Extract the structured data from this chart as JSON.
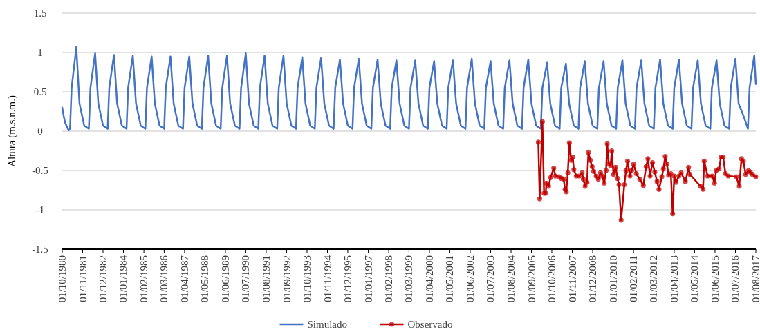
{
  "chart_data": {
    "type": "line",
    "ylabel": "Altura (m.s.n.m.)",
    "xlim": [
      "1980-10-01",
      "2017-08-01"
    ],
    "ylim": [
      -1.5,
      1.5
    ],
    "yticks": [
      -1.5,
      -1,
      -0.5,
      0,
      0.5,
      1,
      1.5
    ],
    "xticks": [
      {
        "value": "1980-10-01",
        "label": "01/10/1980"
      },
      {
        "value": "1981-11-01",
        "label": "01/11/1981"
      },
      {
        "value": "1982-12-01",
        "label": "01/12/1982"
      },
      {
        "value": "1984-01-01",
        "label": "01/01/1984"
      },
      {
        "value": "1985-02-01",
        "label": "01/02/1985"
      },
      {
        "value": "1986-03-01",
        "label": "01/03/1986"
      },
      {
        "value": "1987-04-01",
        "label": "01/04/1987"
      },
      {
        "value": "1988-05-01",
        "label": "01/05/1988"
      },
      {
        "value": "1989-06-01",
        "label": "01/06/1989"
      },
      {
        "value": "1990-07-01",
        "label": "01/07/1990"
      },
      {
        "value": "1991-08-01",
        "label": "01/08/1991"
      },
      {
        "value": "1992-09-01",
        "label": "01/09/1992"
      },
      {
        "value": "1993-10-01",
        "label": "01/10/1993"
      },
      {
        "value": "1994-11-01",
        "label": "01/11/1994"
      },
      {
        "value": "1995-12-01",
        "label": "01/12/1995"
      },
      {
        "value": "1997-01-01",
        "label": "01/01/1997"
      },
      {
        "value": "1998-02-01",
        "label": "01/02/1998"
      },
      {
        "value": "1999-03-01",
        "label": "01/03/1999"
      },
      {
        "value": "2000-04-01",
        "label": "01/04/2000"
      },
      {
        "value": "2001-05-01",
        "label": "01/05/2001"
      },
      {
        "value": "2002-06-01",
        "label": "01/06/2002"
      },
      {
        "value": "2003-07-01",
        "label": "01/07/2003"
      },
      {
        "value": "2004-08-01",
        "label": "01/08/2004"
      },
      {
        "value": "2005-09-01",
        "label": "01/09/2005"
      },
      {
        "value": "2006-10-01",
        "label": "01/10/2006"
      },
      {
        "value": "2007-11-01",
        "label": "01/11/2007"
      },
      {
        "value": "2008-12-01",
        "label": "01/12/2008"
      },
      {
        "value": "2010-01-01",
        "label": "01/01/2010"
      },
      {
        "value": "2011-02-01",
        "label": "01/02/2011"
      },
      {
        "value": "2012-03-01",
        "label": "01/03/2012"
      },
      {
        "value": "2013-04-01",
        "label": "01/04/2013"
      },
      {
        "value": "2014-05-01",
        "label": "01/05/2014"
      },
      {
        "value": "2015-06-01",
        "label": "01/06/2015"
      },
      {
        "value": "2016-07-01",
        "label": "01/07/2016"
      },
      {
        "value": "2017-08-01",
        "label": "01/08/2017"
      }
    ],
    "grid": "y",
    "legend": "bottom",
    "line_style": "solid",
    "series": [
      {
        "name": "Simulado",
        "color": "#4472c4",
        "marker": "none",
        "x": [
          "1980-10",
          "1980-11",
          "1980-12",
          "1981-02",
          "1981-03",
          "1981-04",
          "1981-07",
          "1981-09",
          "1981-12",
          "1982-03",
          "1982-04",
          "1982-07",
          "1982-09",
          "1982-12",
          "1983-03",
          "1983-04",
          "1983-07",
          "1983-09",
          "1983-12",
          "1984-03",
          "1984-04",
          "1984-07",
          "1984-09",
          "1984-12",
          "1985-03",
          "1985-04",
          "1985-07",
          "1985-09",
          "1985-12",
          "1986-03",
          "1986-04",
          "1986-07",
          "1986-09",
          "1986-12",
          "1987-03",
          "1987-04",
          "1987-07",
          "1987-09",
          "1987-12",
          "1988-03",
          "1988-04",
          "1988-07",
          "1988-09",
          "1988-12",
          "1989-03",
          "1989-04",
          "1989-07",
          "1989-09",
          "1989-12",
          "1990-03",
          "1990-04",
          "1990-07",
          "1990-09",
          "1990-12",
          "1991-03",
          "1991-04",
          "1991-07",
          "1991-09",
          "1991-12",
          "1992-03",
          "1992-04",
          "1992-07",
          "1992-09",
          "1992-12",
          "1993-03",
          "1993-04",
          "1993-07",
          "1993-09",
          "1993-12",
          "1994-03",
          "1994-04",
          "1994-07",
          "1994-09",
          "1994-12",
          "1995-03",
          "1995-04",
          "1995-07",
          "1995-09",
          "1995-12",
          "1996-03",
          "1996-04",
          "1996-07",
          "1996-09",
          "1996-12",
          "1997-03",
          "1997-04",
          "1997-07",
          "1997-09",
          "1997-12",
          "1998-03",
          "1998-04",
          "1998-07",
          "1998-09",
          "1998-12",
          "1999-03",
          "1999-04",
          "1999-07",
          "1999-09",
          "1999-12",
          "2000-03",
          "2000-04",
          "2000-07",
          "2000-09",
          "2000-12",
          "2001-03",
          "2001-04",
          "2001-07",
          "2001-09",
          "2001-12",
          "2002-03",
          "2002-04",
          "2002-07",
          "2002-09",
          "2002-12",
          "2003-03",
          "2003-04",
          "2003-07",
          "2003-09",
          "2003-12",
          "2004-03",
          "2004-04",
          "2004-07",
          "2004-09",
          "2004-12",
          "2005-03",
          "2005-04",
          "2005-07",
          "2005-09",
          "2005-12",
          "2006-03",
          "2006-04",
          "2006-07",
          "2006-09",
          "2006-12",
          "2007-03",
          "2007-04",
          "2007-07",
          "2007-09",
          "2007-12",
          "2008-03",
          "2008-04",
          "2008-07",
          "2008-09",
          "2008-12",
          "2009-03",
          "2009-04",
          "2009-07",
          "2009-09",
          "2009-12",
          "2010-03",
          "2010-04",
          "2010-07",
          "2010-09",
          "2010-12",
          "2011-03",
          "2011-04",
          "2011-07",
          "2011-09",
          "2011-12",
          "2012-03",
          "2012-04",
          "2012-07",
          "2012-09",
          "2012-12",
          "2013-03",
          "2013-04",
          "2013-07",
          "2013-09",
          "2013-12",
          "2014-03",
          "2014-04",
          "2014-07",
          "2014-09",
          "2014-12",
          "2015-03",
          "2015-04",
          "2015-07",
          "2015-09",
          "2015-12",
          "2016-03",
          "2016-04",
          "2016-07",
          "2016-09",
          "2016-12",
          "2017-03",
          "2017-04",
          "2017-07",
          "2017-08"
        ],
        "values": [
          0.3,
          0.18,
          0.1,
          0.01,
          0.03,
          0.55,
          1.07,
          0.35,
          0.07,
          0.03,
          0.55,
          0.99,
          0.35,
          0.07,
          0.03,
          0.55,
          0.97,
          0.35,
          0.07,
          0.03,
          0.55,
          0.96,
          0.35,
          0.07,
          0.03,
          0.55,
          0.95,
          0.35,
          0.07,
          0.03,
          0.55,
          0.95,
          0.35,
          0.07,
          0.03,
          0.55,
          0.95,
          0.35,
          0.07,
          0.03,
          0.55,
          0.96,
          0.35,
          0.07,
          0.03,
          0.55,
          0.96,
          0.35,
          0.07,
          0.03,
          0.55,
          0.99,
          0.35,
          0.07,
          0.03,
          0.55,
          0.96,
          0.35,
          0.07,
          0.03,
          0.55,
          0.96,
          0.35,
          0.07,
          0.03,
          0.55,
          0.94,
          0.35,
          0.07,
          0.03,
          0.55,
          0.93,
          0.35,
          0.07,
          0.03,
          0.55,
          0.91,
          0.35,
          0.07,
          0.03,
          0.55,
          0.92,
          0.35,
          0.07,
          0.03,
          0.55,
          0.91,
          0.35,
          0.07,
          0.03,
          0.55,
          0.9,
          0.35,
          0.07,
          0.03,
          0.55,
          0.9,
          0.35,
          0.07,
          0.03,
          0.55,
          0.89,
          0.35,
          0.07,
          0.03,
          0.55,
          0.9,
          0.35,
          0.07,
          0.03,
          0.55,
          0.92,
          0.35,
          0.07,
          0.03,
          0.55,
          0.89,
          0.35,
          0.07,
          0.03,
          0.55,
          0.9,
          0.35,
          0.07,
          0.03,
          0.55,
          0.91,
          0.35,
          0.07,
          0.03,
          0.55,
          0.87,
          0.35,
          0.07,
          0.03,
          0.55,
          0.86,
          0.35,
          0.07,
          0.03,
          0.55,
          0.89,
          0.35,
          0.07,
          0.03,
          0.55,
          0.89,
          0.35,
          0.07,
          0.03,
          0.55,
          0.9,
          0.35,
          0.07,
          0.03,
          0.55,
          0.9,
          0.35,
          0.07,
          0.03,
          0.55,
          0.91,
          0.35,
          0.07,
          0.03,
          0.55,
          0.91,
          0.35,
          0.07,
          0.03,
          0.55,
          0.9,
          0.35,
          0.07,
          0.03,
          0.55,
          0.9,
          0.35,
          0.07,
          0.03,
          0.55,
          0.92,
          0.35,
          0.2,
          0.03,
          0.55,
          0.96,
          0.6
        ]
      },
      {
        "name": "Observado",
        "color": "#c00000",
        "marker": "circle",
        "x": [
          "2006-01-12",
          "2006-02-07",
          "2006-04-01",
          "2006-05-03",
          "2006-06-06",
          "2006-06-16",
          "2006-07-30",
          "2006-09-06",
          "2006-11-07",
          "2006-12-09",
          "2007-02-18",
          "2007-04-05",
          "2007-05-18",
          "2007-06-16",
          "2007-07-08",
          "2007-08-07",
          "2007-09-06",
          "2007-10-12",
          "2007-11-11",
          "2007-12-02",
          "2008-01-19",
          "2008-03-13",
          "2008-05-11",
          "2008-06-02",
          "2008-07-08",
          "2008-08-14",
          "2008-09-09",
          "2008-10-15",
          "2008-11-21",
          "2008-12-20",
          "2009-02-07",
          "2009-03-20",
          "2009-05-03",
          "2009-06-06",
          "2009-07-12",
          "2009-08-18",
          "2009-09-09",
          "2009-10-08",
          "2009-11-14",
          "2009-12-06",
          "2010-01-08",
          "2010-02-21",
          "2010-03-27",
          "2010-04-26",
          "2010-06-06",
          "2010-08-07",
          "2010-09-09",
          "2010-10-08",
          "2010-11-25",
          "2010-12-27",
          "2011-02-03",
          "2011-03-27",
          "2011-06-02",
          "2011-08-10",
          "2011-10-04",
          "2011-11-07",
          "2011-12-20",
          "2012-02-03",
          "2012-03-20",
          "2012-05-03",
          "2012-06-09",
          "2012-08-03",
          "2012-09-02",
          "2012-10-08",
          "2012-11-11",
          "2012-12-13",
          "2013-01-26",
          "2013-03-02",
          "2013-04-01",
          "2013-05-07",
          "2013-07-01",
          "2013-08-14",
          "2013-11-03",
          "2014-01-05",
          "2014-01-30",
          "2014-08-25",
          "2014-10-12",
          "2014-11-03",
          "2015-01-08",
          "2015-04-08",
          "2015-05-21",
          "2015-06-24",
          "2015-08-18",
          "2015-09-24",
          "2015-11-07",
          "2015-12-20",
          "2016-02-14",
          "2016-07-19",
          "2016-09-13",
          "2016-10-26",
          "2016-12-02",
          "2017-01-15",
          "2017-03-13",
          "2017-04-15",
          "2017-05-28",
          "2017-07-30"
        ],
        "values": [
          -0.14,
          -0.86,
          0.12,
          -0.79,
          -0.79,
          -0.66,
          -0.7,
          -0.59,
          -0.47,
          -0.57,
          -0.58,
          -0.6,
          -0.61,
          -0.74,
          -0.77,
          -0.53,
          -0.15,
          -0.37,
          -0.33,
          -0.49,
          -0.57,
          -0.57,
          -0.53,
          -0.61,
          -0.7,
          -0.65,
          -0.27,
          -0.37,
          -0.45,
          -0.51,
          -0.57,
          -0.61,
          -0.53,
          -0.57,
          -0.66,
          -0.5,
          -0.16,
          -0.41,
          -0.44,
          -0.25,
          -0.55,
          -0.46,
          -0.6,
          -0.68,
          -1.13,
          -0.68,
          -0.5,
          -0.38,
          -0.57,
          -0.5,
          -0.42,
          -0.54,
          -0.61,
          -0.69,
          -0.45,
          -0.35,
          -0.57,
          -0.4,
          -0.52,
          -0.64,
          -0.74,
          -0.58,
          -0.48,
          -0.32,
          -0.42,
          -0.56,
          -0.54,
          -1.05,
          -0.57,
          -0.65,
          -0.57,
          -0.53,
          -0.64,
          -0.46,
          -0.55,
          -0.7,
          -0.74,
          -0.38,
          -0.57,
          -0.57,
          -0.66,
          -0.5,
          -0.48,
          -0.33,
          -0.33,
          -0.54,
          -0.57,
          -0.58,
          -0.7,
          -0.35,
          -0.38,
          -0.55,
          -0.5,
          -0.52,
          -0.55,
          -0.58
        ]
      }
    ]
  }
}
